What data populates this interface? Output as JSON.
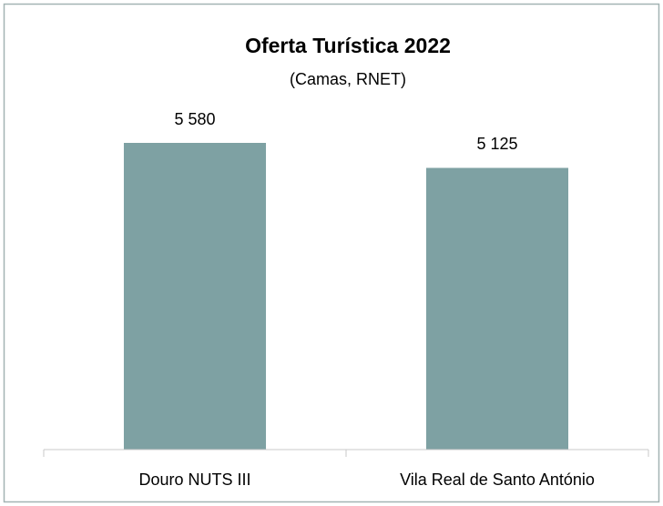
{
  "chart_data": {
    "type": "bar",
    "title": "Oferta Turística 2022",
    "subtitle": "(Camas, RNET)",
    "categories": [
      "Douro NUTS III",
      "Vila Real de Santo António"
    ],
    "values": [
      5580,
      5125
    ],
    "value_labels": [
      "5 580",
      "5 125"
    ],
    "color": "#7ea1a3"
  }
}
